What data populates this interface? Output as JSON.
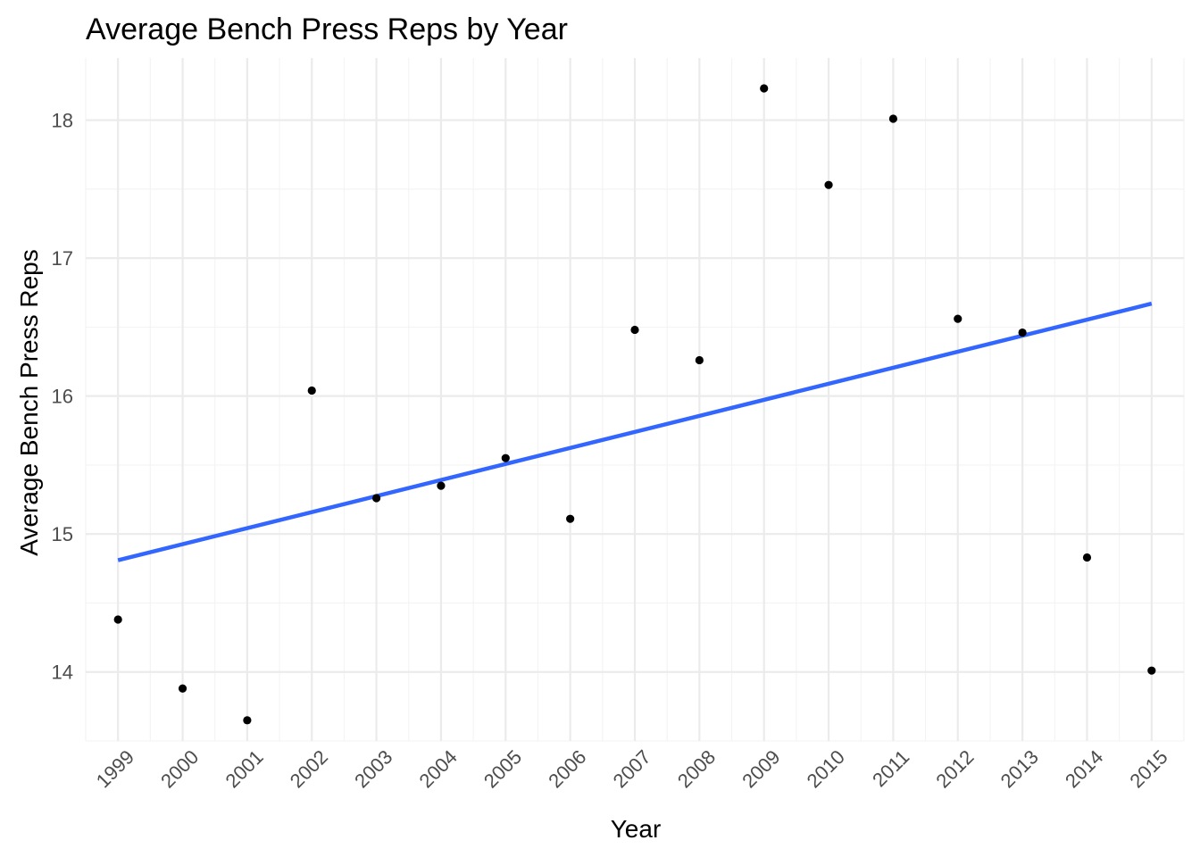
{
  "chart_data": {
    "type": "scatter",
    "title": "Average Bench Press Reps by Year",
    "xlabel": "Year",
    "ylabel": "Average Bench Press Reps",
    "x": [
      1999,
      2000,
      2001,
      2002,
      2003,
      2004,
      2005,
      2006,
      2007,
      2008,
      2009,
      2010,
      2011,
      2012,
      2013,
      2014,
      2015
    ],
    "x_tick_labels": [
      "1999",
      "2000",
      "2001",
      "2002",
      "2003",
      "2004",
      "2005",
      "2006",
      "2007",
      "2008",
      "2009",
      "2010",
      "2011",
      "2012",
      "2013",
      "2014",
      "2015"
    ],
    "y": [
      14.38,
      13.88,
      13.65,
      16.04,
      15.26,
      15.35,
      15.55,
      15.11,
      16.48,
      16.26,
      18.23,
      17.53,
      18.01,
      16.56,
      16.46,
      14.83,
      14.01
    ],
    "y_ticks": [
      14,
      15,
      16,
      17,
      18
    ],
    "y_tick_labels": [
      "14",
      "15",
      "16",
      "17",
      "18"
    ],
    "xlim": [
      1998.5,
      2015.5
    ],
    "ylim": [
      13.5,
      18.45
    ],
    "trend_line": {
      "type": "linear",
      "start": [
        1999,
        14.81
      ],
      "end": [
        2015,
        16.67
      ],
      "color": "#3366ff"
    },
    "point_color": "#000000",
    "grid": true,
    "legend": "none"
  }
}
